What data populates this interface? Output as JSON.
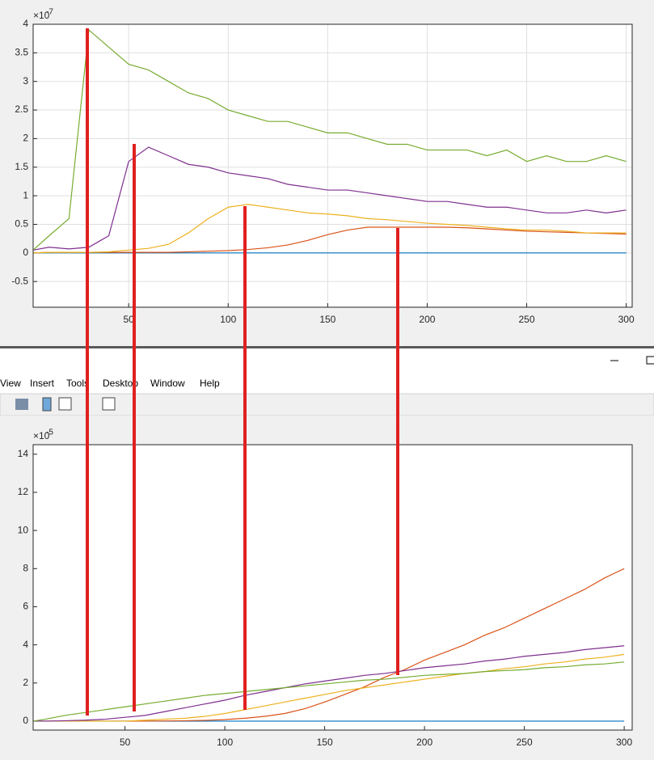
{
  "chart_data": [
    {
      "type": "line",
      "grid": true,
      "y_exponent": {
        "base": "×10",
        "power": "-7"
      },
      "x": [
        2,
        10,
        20,
        30,
        40,
        50,
        60,
        70,
        80,
        90,
        100,
        110,
        120,
        130,
        140,
        150,
        160,
        170,
        180,
        190,
        200,
        210,
        220,
        230,
        240,
        250,
        260,
        270,
        280,
        290,
        300
      ],
      "xlim": [
        2,
        303
      ],
      "xticks": [
        50,
        100,
        150,
        200,
        250,
        300
      ],
      "ylim": [
        -0.95,
        4.0
      ],
      "yticks": [
        -0.5,
        0,
        0.5,
        1,
        1.5,
        2,
        2.5,
        3,
        3.5,
        4
      ],
      "series": [
        {
          "color": "#0072BD",
          "values": [
            0,
            0,
            0,
            0,
            0,
            0,
            0,
            0,
            0,
            0,
            0,
            0,
            0,
            0,
            0,
            0,
            0,
            0,
            0,
            0,
            0,
            0,
            0,
            0,
            0,
            0,
            0,
            0,
            0,
            0,
            0
          ]
        },
        {
          "color": "#D95319",
          "values": [
            0,
            0.01,
            0.01,
            0.01,
            0.01,
            0.01,
            0.01,
            0.01,
            0.02,
            0.03,
            0.04,
            0.06,
            0.09,
            0.14,
            0.22,
            0.32,
            0.4,
            0.45,
            0.45,
            0.45,
            0.45,
            0.45,
            0.44,
            0.42,
            0.4,
            0.38,
            0.37,
            0.36,
            0.35,
            0.34,
            0.33
          ]
        },
        {
          "color": "#EDB120",
          "values": [
            0,
            0.01,
            0.01,
            0.01,
            0.02,
            0.05,
            0.08,
            0.15,
            0.35,
            0.6,
            0.8,
            0.85,
            0.8,
            0.75,
            0.7,
            0.68,
            0.65,
            0.6,
            0.58,
            0.55,
            0.52,
            0.5,
            0.48,
            0.45,
            0.42,
            0.4,
            0.4,
            0.38,
            0.35,
            0.35,
            0.35
          ]
        },
        {
          "color": "#7E2F8E",
          "values": [
            0.05,
            0.1,
            0.07,
            0.1,
            0.3,
            1.6,
            1.85,
            1.7,
            1.55,
            1.5,
            1.4,
            1.35,
            1.3,
            1.2,
            1.15,
            1.1,
            1.1,
            1.05,
            1.0,
            0.95,
            0.9,
            0.9,
            0.85,
            0.8,
            0.8,
            0.75,
            0.7,
            0.7,
            0.75,
            0.7,
            0.75
          ]
        },
        {
          "color": "#77AC30",
          "values": [
            0.05,
            0.3,
            0.6,
            3.9,
            3.6,
            3.3,
            3.2,
            3.0,
            2.8,
            2.7,
            2.5,
            2.4,
            2.3,
            2.3,
            2.2,
            2.1,
            2.1,
            2.0,
            1.9,
            1.9,
            1.8,
            1.8,
            1.8,
            1.7,
            1.8,
            1.6,
            1.7,
            1.6,
            1.6,
            1.7,
            1.6
          ]
        }
      ]
    },
    {
      "type": "line",
      "grid": false,
      "y_exponent": {
        "base": "×10",
        "power": "-5"
      },
      "x": [
        4,
        10,
        20,
        30,
        40,
        50,
        60,
        70,
        80,
        90,
        100,
        110,
        120,
        130,
        140,
        150,
        160,
        170,
        180,
        190,
        200,
        210,
        220,
        230,
        240,
        250,
        260,
        270,
        280,
        290,
        300
      ],
      "xlim": [
        4,
        304
      ],
      "xticks": [
        50,
        100,
        150,
        200,
        250,
        300
      ],
      "ylim": [
        -0.47,
        14.5
      ],
      "yticks": [
        0,
        2,
        4,
        6,
        8,
        10,
        12,
        14
      ],
      "series": [
        {
          "color": "#0072BD",
          "values": [
            0,
            0,
            0,
            0,
            0,
            0,
            0,
            0,
            0,
            0,
            0,
            0,
            0,
            0,
            0,
            0,
            0,
            0,
            0,
            0,
            0,
            0,
            0,
            0,
            0,
            0,
            0,
            0,
            0,
            0,
            0
          ]
        },
        {
          "color": "#D95319",
          "values": [
            0,
            0,
            0,
            0,
            0,
            0,
            0,
            0.01,
            0.02,
            0.04,
            0.08,
            0.15,
            0.25,
            0.4,
            0.65,
            1.0,
            1.4,
            1.8,
            2.3,
            2.7,
            3.2,
            3.6,
            4.0,
            4.5,
            4.9,
            5.4,
            5.9,
            6.4,
            6.9,
            7.5,
            8.0
          ]
        },
        {
          "color": "#EDB120",
          "values": [
            0,
            0,
            0,
            0,
            0,
            0,
            0.05,
            0.1,
            0.15,
            0.25,
            0.4,
            0.6,
            0.8,
            1.0,
            1.2,
            1.4,
            1.6,
            1.75,
            1.9,
            2.05,
            2.2,
            2.35,
            2.5,
            2.6,
            2.75,
            2.85,
            3.0,
            3.1,
            3.25,
            3.35,
            3.5
          ]
        },
        {
          "color": "#7E2F8E",
          "values": [
            0,
            0,
            0.02,
            0.05,
            0.1,
            0.2,
            0.3,
            0.5,
            0.7,
            0.9,
            1.1,
            1.35,
            1.55,
            1.75,
            1.95,
            2.1,
            2.25,
            2.4,
            2.5,
            2.65,
            2.8,
            2.9,
            3.0,
            3.15,
            3.25,
            3.4,
            3.5,
            3.6,
            3.75,
            3.85,
            3.95
          ]
        },
        {
          "color": "#77AC30",
          "values": [
            0,
            0.1,
            0.3,
            0.45,
            0.6,
            0.75,
            0.9,
            1.05,
            1.2,
            1.35,
            1.45,
            1.55,
            1.65,
            1.75,
            1.85,
            1.95,
            2.05,
            2.15,
            2.2,
            2.3,
            2.4,
            2.45,
            2.5,
            2.6,
            2.65,
            2.7,
            2.8,
            2.85,
            2.95,
            3.0,
            3.1
          ]
        }
      ]
    }
  ],
  "window": {
    "menu": [
      "View",
      "Insert",
      "Tools",
      "Desktop",
      "Window",
      "Help"
    ]
  }
}
